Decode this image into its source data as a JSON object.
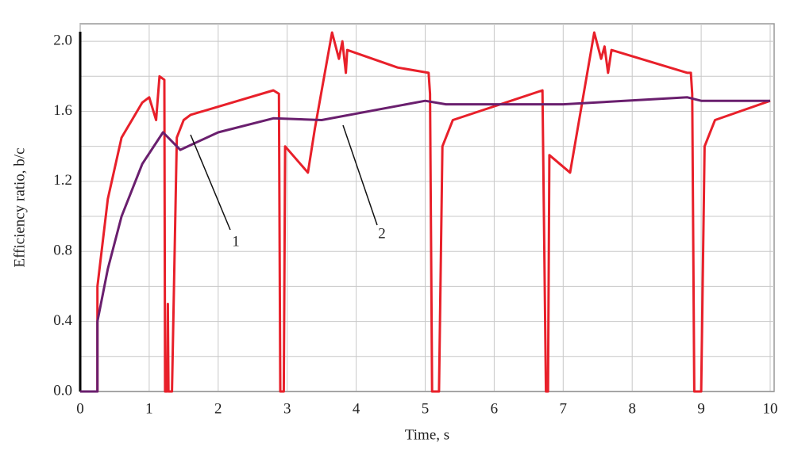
{
  "chart_data": {
    "type": "line",
    "xlabel": "Time, s",
    "ylabel": "Efficiency ratio, b/c",
    "xlim": [
      0,
      10
    ],
    "ylim": [
      0,
      2.1
    ],
    "xticks": [
      0,
      1,
      2,
      3,
      4,
      5,
      6,
      7,
      8,
      9,
      10
    ],
    "yticks": [
      {
        "value": 0,
        "label": "0.0"
      },
      0.4,
      0.8,
      1.2,
      1.6,
      {
        "value": 2,
        "label": "2.0"
      }
    ],
    "yminorticks": [
      0.2,
      0.6,
      1.0,
      1.4,
      1.8
    ],
    "grid": true,
    "series": [
      {
        "name": "1",
        "color": "#e8202a",
        "x": [
          0,
          0.25,
          0.25,
          0.4,
          0.6,
          0.9,
          1.0,
          1.1,
          1.15,
          1.22,
          1.23,
          1.26,
          1.27,
          1.28,
          1.33,
          1.4,
          1.5,
          1.6,
          2.8,
          2.88,
          2.9,
          2.95,
          2.97,
          3.3,
          3.4,
          3.65,
          3.75,
          3.8,
          3.85,
          3.87,
          4.6,
          5.05,
          5.07,
          5.1,
          5.2,
          5.25,
          5.4,
          6.7,
          6.75,
          6.78,
          6.8,
          7.1,
          7.45,
          7.55,
          7.6,
          7.65,
          7.7,
          8.8,
          8.85,
          8.87,
          8.9,
          9.0,
          9.05,
          9.2,
          10
        ],
        "values": [
          0,
          0,
          0.6,
          1.1,
          1.45,
          1.65,
          1.68,
          1.55,
          1.8,
          1.78,
          0,
          0,
          0.5,
          0,
          0,
          1.45,
          1.55,
          1.58,
          1.72,
          1.7,
          0,
          0,
          1.4,
          1.25,
          1.5,
          2.05,
          1.9,
          2.0,
          1.82,
          1.95,
          1.85,
          1.82,
          1.7,
          0,
          0,
          1.4,
          1.55,
          1.72,
          0,
          0,
          1.35,
          1.25,
          2.05,
          1.9,
          1.97,
          1.82,
          1.95,
          1.82,
          1.82,
          1.7,
          0,
          0,
          1.4,
          1.55,
          1.66
        ]
      },
      {
        "name": "2",
        "color": "#6a1f6e",
        "x": [
          0,
          0.25,
          0.25,
          0.4,
          0.6,
          0.9,
          1.2,
          1.45,
          2.0,
          2.8,
          3.5,
          5.0,
          5.3,
          7.0,
          8.8,
          9.0,
          10
        ],
        "values": [
          0,
          0,
          0.4,
          0.7,
          1.0,
          1.3,
          1.48,
          1.38,
          1.48,
          1.56,
          1.55,
          1.66,
          1.64,
          1.64,
          1.68,
          1.66,
          1.66
        ]
      }
    ],
    "annotations": [
      "1",
      "2"
    ]
  }
}
